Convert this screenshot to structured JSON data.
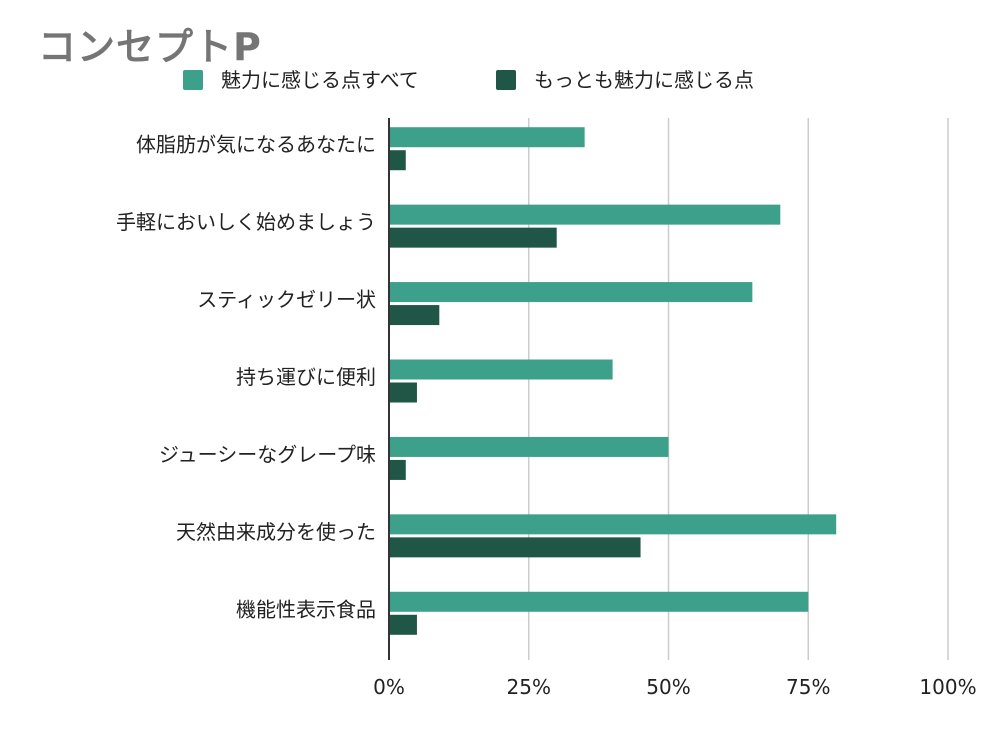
{
  "chart_data": {
    "type": "bar",
    "orientation": "horizontal",
    "title": "コンセプトP",
    "categories": [
      "体脂肪が気になるあなたに",
      "手軽においしく始めましょう",
      "スティックゼリー状",
      "持ち運びに便利",
      "ジューシーなグレープ味",
      "天然由来成分を使った",
      "機能性表示食品"
    ],
    "series": [
      {
        "name": "魅力に感じる点すべて",
        "color": "#3da08a",
        "values": [
          35,
          70,
          65,
          40,
          50,
          80,
          75
        ]
      },
      {
        "name": "もっとも魅力に感じる点",
        "color": "#1f5646",
        "values": [
          3,
          30,
          9,
          5,
          3,
          45,
          5
        ]
      }
    ],
    "x_ticks": [
      "0%",
      "25%",
      "50%",
      "75%",
      "100%"
    ],
    "xlim": [
      0,
      100
    ],
    "grid": true,
    "legend_position": "top"
  }
}
